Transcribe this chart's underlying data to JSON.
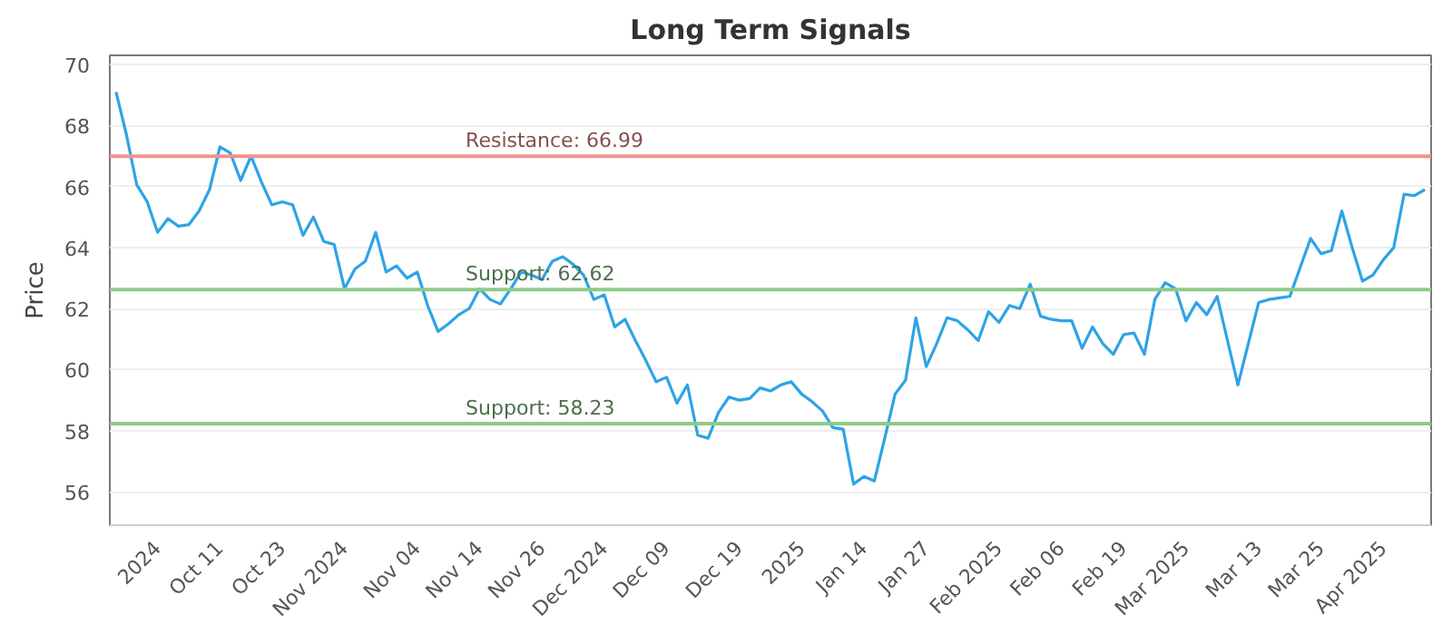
{
  "chart_data": {
    "type": "line",
    "title": "Long Term Signals",
    "ylabel": "Price",
    "categories": [
      null,
      null,
      null,
      null,
      "2024",
      null,
      null,
      null,
      null,
      null,
      "Oct 11",
      null,
      null,
      null,
      null,
      null,
      "Oct 23",
      null,
      null,
      null,
      null,
      null,
      "Nov 2024",
      null,
      null,
      null,
      null,
      null,
      null,
      "Nov 04",
      null,
      null,
      null,
      null,
      null,
      "Nov 14",
      null,
      null,
      null,
      null,
      null,
      "Nov 26",
      null,
      null,
      null,
      null,
      null,
      "Dec 2024",
      null,
      null,
      null,
      null,
      null,
      "Dec 09",
      null,
      null,
      null,
      null,
      null,
      null,
      "Dec 19",
      null,
      null,
      null,
      null,
      null,
      "2025",
      null,
      null,
      null,
      null,
      null,
      "Jan 14",
      null,
      null,
      null,
      null,
      null,
      "Jan 27",
      null,
      null,
      null,
      null,
      null,
      null,
      "Feb 2025",
      null,
      null,
      null,
      null,
      null,
      "Feb 06",
      null,
      null,
      null,
      null,
      null,
      "Feb 19",
      null,
      null,
      null,
      null,
      null,
      "Mar 2025",
      null,
      null,
      null,
      null,
      null,
      null,
      "Mar 13",
      null,
      null,
      null,
      null,
      null,
      "Mar 25",
      null,
      null,
      null,
      null,
      null,
      "Apr 2025",
      null,
      null,
      null,
      null
    ],
    "series": [
      {
        "color": "#2ea3e6",
        "values": [
          69.1,
          67.7,
          66.05,
          65.5,
          64.5,
          64.95,
          64.7,
          64.75,
          65.2,
          65.9,
          67.3,
          67.1,
          66.2,
          67.0,
          66.15,
          65.4,
          65.5,
          65.4,
          64.4,
          65.0,
          64.2,
          64.1,
          62.65,
          63.3,
          63.55,
          64.5,
          63.2,
          63.4,
          63.0,
          63.2,
          62.1,
          61.25,
          61.5,
          61.8,
          62.0,
          62.65,
          62.3,
          62.15,
          62.65,
          63.2,
          63.1,
          62.95,
          63.55,
          63.7,
          63.45,
          63.1,
          62.3,
          62.45,
          61.4,
          61.65,
          60.95,
          60.3,
          59.6,
          59.75,
          58.9,
          59.5,
          57.85,
          57.75,
          58.6,
          59.1,
          59.0,
          59.05,
          59.4,
          59.3,
          59.5,
          59.6,
          59.2,
          58.95,
          58.65,
          58.1,
          58.05,
          56.25,
          56.5,
          56.35,
          57.75,
          59.2,
          59.65,
          61.7,
          60.1,
          60.85,
          61.7,
          61.6,
          61.3,
          60.95,
          61.9,
          61.55,
          62.1,
          62.0,
          62.8,
          61.75,
          61.65,
          61.6,
          61.6,
          60.7,
          61.4,
          60.85,
          60.5,
          61.15,
          61.2,
          60.5,
          62.3,
          62.85,
          62.65,
          61.6,
          62.2,
          61.8,
          62.4,
          60.95,
          59.5,
          60.85,
          62.2,
          62.3,
          62.35,
          62.4,
          63.35,
          64.3,
          63.8,
          63.9,
          65.2,
          64.0,
          62.9,
          63.1,
          63.6,
          64.0,
          65.75,
          65.7,
          65.9
        ]
      }
    ],
    "ylim": [
      54.9,
      70.3
    ],
    "yticks": [
      56,
      58,
      60,
      62,
      64,
      66,
      68,
      70
    ],
    "grid": "y",
    "ref_lines": [
      {
        "axis": "y",
        "value": 66.99,
        "label": "Resistance: 66.99",
        "color": "#f0928c"
      },
      {
        "axis": "y",
        "value": 62.62,
        "label": "Support: 62.62",
        "color": "#8dcb88"
      },
      {
        "axis": "y",
        "value": 58.23,
        "label": "Support: 58.23",
        "color": "#8dcb88"
      }
    ]
  }
}
